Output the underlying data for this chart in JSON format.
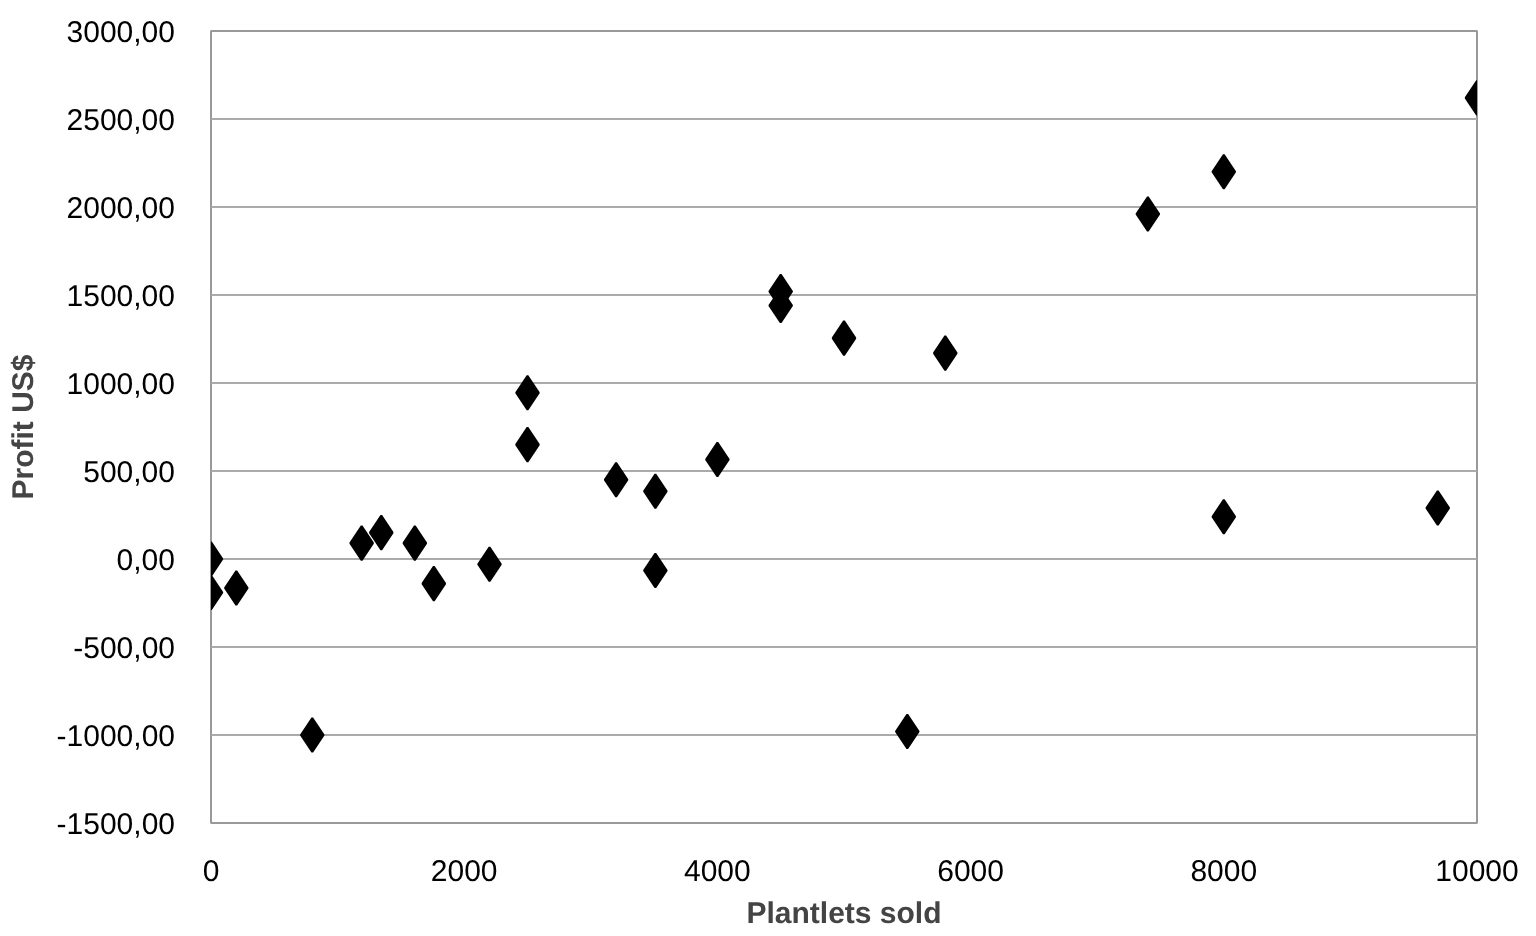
{
  "chart_data": {
    "type": "scatter",
    "xlabel": "Plantlets sold",
    "ylabel": "Profit US$",
    "marker": "diamond",
    "grid": "y",
    "x": [
      0,
      0,
      200,
      800,
      1190,
      1345,
      1610,
      1760,
      2200,
      2500,
      2500,
      3200,
      3510,
      3510,
      4000,
      4500,
      4500,
      5000,
      5800,
      5500,
      7400,
      8000,
      8000,
      9690,
      10000
    ],
    "series": [
      {
        "color": "#000000",
        "values": [
          0,
          -190,
          -165,
          -1000,
          90,
          150,
          90,
          -140,
          -30,
          945,
          650,
          450,
          385,
          -65,
          565,
          1520,
          1440,
          1255,
          1170,
          -980,
          1960,
          2200,
          240,
          290,
          2620
        ]
      }
    ],
    "xlim": [
      0,
      10000
    ],
    "xticks": [
      0,
      2000,
      4000,
      6000,
      8000,
      10000
    ],
    "ylim": [
      -1500,
      3000
    ],
    "yticks": [
      {
        "value": -1500,
        "label": "-1500,00"
      },
      {
        "value": -1000,
        "label": "-1000,00"
      },
      {
        "value": -500,
        "label": "-500,00"
      },
      {
        "value": 0,
        "label": "0,00"
      },
      {
        "value": 500,
        "label": "500,00"
      },
      {
        "value": 1000,
        "label": "1000,00"
      },
      {
        "value": 1500,
        "label": "1500,00"
      },
      {
        "value": 2000,
        "label": "2000,00"
      },
      {
        "value": 2500,
        "label": "2500,00"
      },
      {
        "value": 3000,
        "label": "3000,00"
      }
    ]
  }
}
